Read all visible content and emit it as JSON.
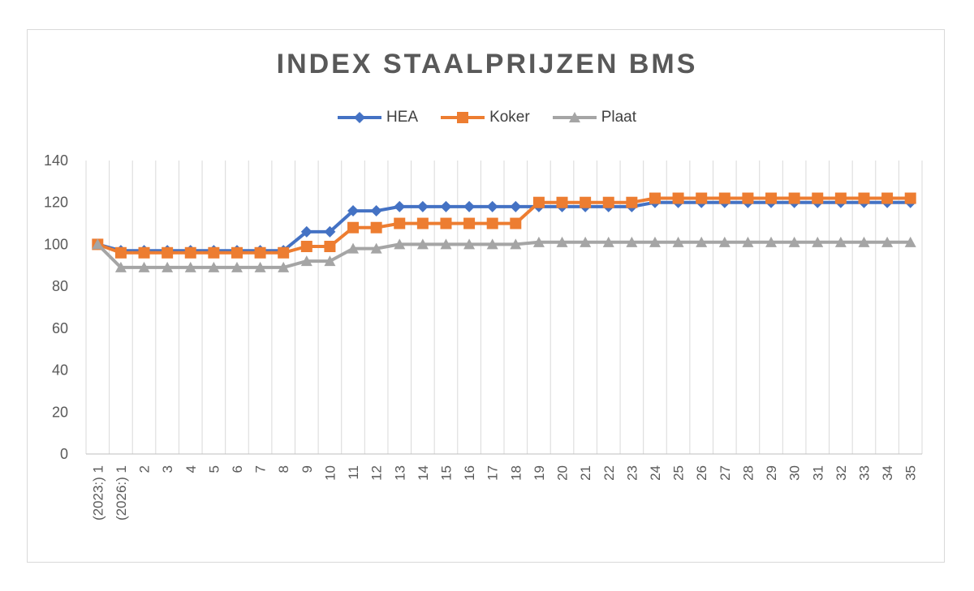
{
  "chart_data": {
    "type": "line",
    "title": "INDEX STAALPRIJZEN BMS",
    "xlabel": "",
    "ylabel": "",
    "ylim": [
      0,
      140
    ],
    "yticks": [
      0,
      20,
      40,
      60,
      80,
      100,
      120,
      140
    ],
    "grid": "vertical",
    "legend_position": "top",
    "categories": [
      "(2023:) 1",
      "(2026:) 1",
      "2",
      "3",
      "4",
      "5",
      "6",
      "7",
      "8",
      "9",
      "10",
      "11",
      "12",
      "13",
      "14",
      "15",
      "16",
      "17",
      "18",
      "19",
      "20",
      "21",
      "22",
      "23",
      "24",
      "25",
      "26",
      "27",
      "28",
      "29",
      "30",
      "31",
      "32",
      "33",
      "34",
      "35"
    ],
    "series": [
      {
        "name": "HEA",
        "color": "#4472C4",
        "marker": "diamond",
        "values": [
          100,
          97,
          97,
          97,
          97,
          97,
          97,
          97,
          97,
          106,
          106,
          116,
          116,
          118,
          118,
          118,
          118,
          118,
          118,
          118,
          118,
          118,
          118,
          118,
          120,
          120,
          120,
          120,
          120,
          120,
          120,
          120,
          120,
          120,
          120,
          120
        ]
      },
      {
        "name": "Koker",
        "color": "#ED7D31",
        "marker": "square",
        "values": [
          100,
          96,
          96,
          96,
          96,
          96,
          96,
          96,
          96,
          99,
          99,
          108,
          108,
          110,
          110,
          110,
          110,
          110,
          110,
          120,
          120,
          120,
          120,
          120,
          122,
          122,
          122,
          122,
          122,
          122,
          122,
          122,
          122,
          122,
          122,
          122
        ]
      },
      {
        "name": "Plaat",
        "color": "#A5A5A5",
        "marker": "triangle",
        "values": [
          100,
          89,
          89,
          89,
          89,
          89,
          89,
          89,
          89,
          92,
          92,
          98,
          98,
          100,
          100,
          100,
          100,
          100,
          100,
          101,
          101,
          101,
          101,
          101,
          101,
          101,
          101,
          101,
          101,
          101,
          101,
          101,
          101,
          101,
          101,
          101
        ]
      }
    ]
  }
}
